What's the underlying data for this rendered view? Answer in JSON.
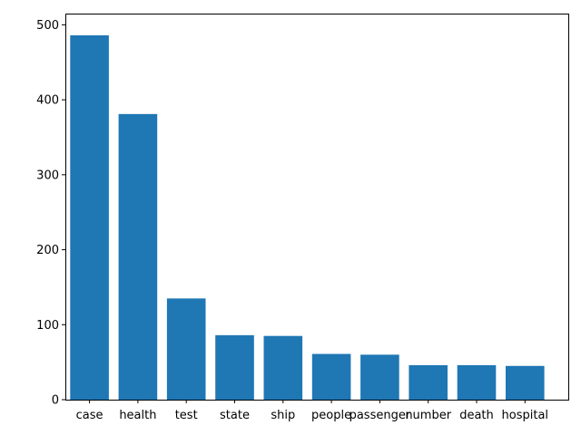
{
  "chart_data": {
    "type": "bar",
    "title": "",
    "xlabel": "",
    "ylabel": "",
    "categories": [
      "case",
      "health",
      "test",
      "state",
      "ship",
      "people",
      "passenger",
      "number",
      "death",
      "hospital"
    ],
    "values": [
      486,
      381,
      135,
      86,
      85,
      61,
      60,
      46,
      46,
      45
    ],
    "ylim": [
      0,
      515
    ],
    "yticks": [
      0,
      100,
      200,
      300,
      400,
      500
    ],
    "ytick_labels": [
      "0",
      "100",
      "200",
      "300",
      "400",
      "500"
    ],
    "grid": false,
    "bar_color": "#1f77b4"
  }
}
